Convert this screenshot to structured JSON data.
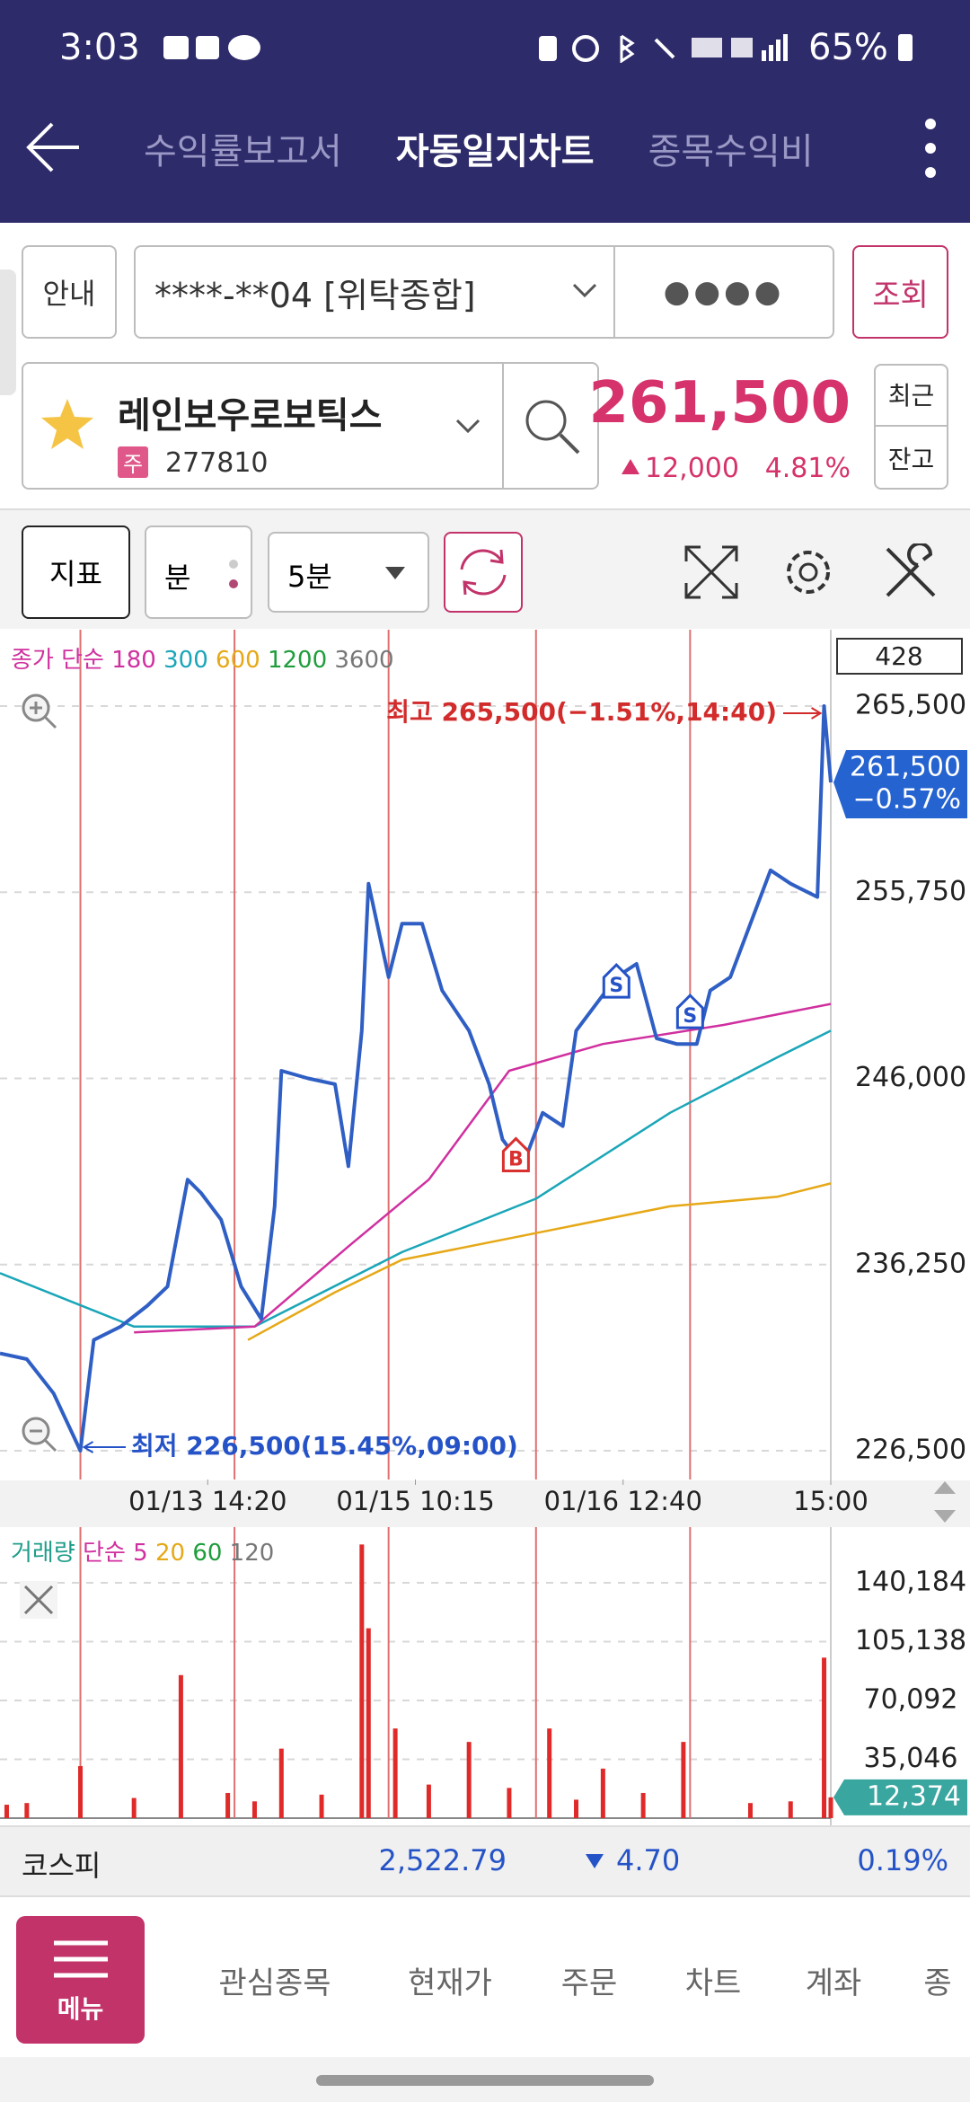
{
  "status_bar": {
    "time": "3:03",
    "battery": "65%"
  },
  "header": {
    "tabs": [
      "수익률보고서",
      "자동일지차트",
      "종목수익비"
    ],
    "active": 1
  },
  "account": {
    "guide": "안내",
    "number": "****-**04 [위탁종합]",
    "password": "●●●●",
    "query": "조회"
  },
  "stock": {
    "name": "레인보우로보틱스",
    "market_badge": "주",
    "code": "277810",
    "price": "261,500",
    "change": "12,000",
    "change_rate": "4.81%",
    "recent": "최근",
    "balance": "잔고"
  },
  "toolbar": {
    "indicator": "지표",
    "minute": "분",
    "interval": "5분"
  },
  "price_chart": {
    "type": "line",
    "count": "428",
    "legend": {
      "label": "종가",
      "method": "단순",
      "extra": [
        {
          "name": "1200",
          "color": "#1f9d3c"
        },
        {
          "name": "3600",
          "color": "#777777"
        }
      ]
    },
    "xlim": [
      0,
      124
    ],
    "xticks": [
      {
        "value": 31,
        "label": "01/13 14:20"
      },
      {
        "value": 62,
        "label": "01/15 10:15"
      },
      {
        "value": 93,
        "label": "01/16 12:40"
      },
      {
        "value": 124,
        "label": "15:00"
      }
    ],
    "ylim": [
      226500,
      265500
    ],
    "yticks": [
      {
        "value": 226500,
        "label": "226,500"
      },
      {
        "value": 236250,
        "label": "236,250"
      },
      {
        "value": 246000,
        "label": "246,000"
      },
      {
        "value": 255750,
        "label": "255,750"
      },
      {
        "value": 265500,
        "label": "265,500"
      }
    ],
    "grid": true,
    "day_separators": [
      12,
      35,
      58,
      80,
      103
    ],
    "series": [
      {
        "name": "종가",
        "color": "#2f5fc4",
        "x": [
          0,
          4,
          8,
          12,
          14,
          18,
          22,
          25,
          28,
          30,
          33,
          36,
          39,
          41,
          42,
          46,
          50,
          52,
          54,
          55,
          58,
          60,
          63,
          66,
          70,
          73,
          75,
          78,
          81,
          84,
          86,
          89,
          92,
          95,
          98,
          101,
          104,
          106,
          109,
          112,
          115,
          118,
          122,
          123,
          124
        ],
        "values": [
          231600,
          231300,
          229500,
          226500,
          232300,
          233000,
          234100,
          235100,
          240700,
          240000,
          238600,
          235100,
          233400,
          239300,
          246400,
          246000,
          245700,
          241400,
          248500,
          256200,
          251300,
          254100,
          254100,
          250600,
          248500,
          245700,
          242800,
          241400,
          244200,
          243500,
          248500,
          249900,
          251300,
          252000,
          248100,
          247800,
          247800,
          250600,
          251300,
          254100,
          256900,
          256200,
          255500,
          265500,
          261500
        ]
      },
      {
        "name": "180",
        "color": "#d0309f",
        "x": [
          20,
          38,
          52,
          64,
          76,
          90,
          108,
          124
        ],
        "values": [
          232700,
          233000,
          237200,
          240700,
          246400,
          247800,
          248800,
          249900
        ]
      },
      {
        "name": "300",
        "color": "#1aa6b8",
        "x": [
          0,
          20,
          38,
          60,
          80,
          100,
          116,
          124
        ],
        "values": [
          235800,
          233000,
          233000,
          236900,
          239700,
          244200,
          247100,
          248500
        ]
      },
      {
        "name": "600",
        "color": "#e6a817",
        "x": [
          37,
          50,
          60,
          80,
          100,
          116,
          124
        ],
        "values": [
          232300,
          234800,
          236500,
          237900,
          239300,
          239800,
          240500
        ]
      }
    ],
    "signals": [
      {
        "label": "B",
        "x": 77,
        "y": 242000,
        "color": "#d93030"
      },
      {
        "label": "S",
        "x": 92,
        "y": 251100,
        "color": "#2553c7"
      },
      {
        "label": "S",
        "x": 103,
        "y": 249500,
        "color": "#2553c7"
      }
    ],
    "high_annotation": "최고 265,500(−1.51%,14:40)",
    "low_annotation": "최저 226,500(15.45%,09:00)",
    "last_label": "261,500",
    "last_change": "−0.57%"
  },
  "volume_chart": {
    "type": "bar",
    "legend": {
      "label": "거래량",
      "method": "단순",
      "periods": [
        {
          "name": "5",
          "color": "#d0309f"
        },
        {
          "name": "20",
          "color": "#e6a817"
        },
        {
          "name": "60",
          "color": "#1f9d3c"
        },
        {
          "name": "120",
          "color": "#777777"
        }
      ]
    },
    "color": "#e02a2a",
    "xlim": [
      0,
      124
    ],
    "ylim": [
      0,
      170000
    ],
    "yticks": [
      {
        "value": 35046,
        "label": "35,046"
      },
      {
        "value": 70092,
        "label": "70,092"
      },
      {
        "value": 105138,
        "label": "105,138"
      },
      {
        "value": 140184,
        "label": "140,184"
      }
    ],
    "grid": true,
    "x": [
      1,
      4,
      12,
      20,
      27,
      34,
      38,
      42,
      48,
      54,
      55,
      59,
      64,
      70,
      76,
      82,
      86,
      90,
      96,
      102,
      112,
      118,
      123,
      124
    ],
    "values": [
      8000,
      9000,
      31000,
      12000,
      85200,
      15000,
      10000,
      41400,
      14000,
      163000,
      113100,
      53400,
      20000,
      45400,
      18000,
      53400,
      11000,
      29500,
      15000,
      45400,
      9000,
      10000,
      95600,
      12374
    ],
    "last_label": "12,374"
  },
  "ticker": {
    "name": "코스피",
    "value": "2,522.79",
    "change": "4.70",
    "rate": "0.19%"
  },
  "nav": {
    "menu": "메뉴",
    "items": [
      "관심종목",
      "현재가",
      "주문",
      "차트",
      "계좌",
      "종"
    ]
  }
}
